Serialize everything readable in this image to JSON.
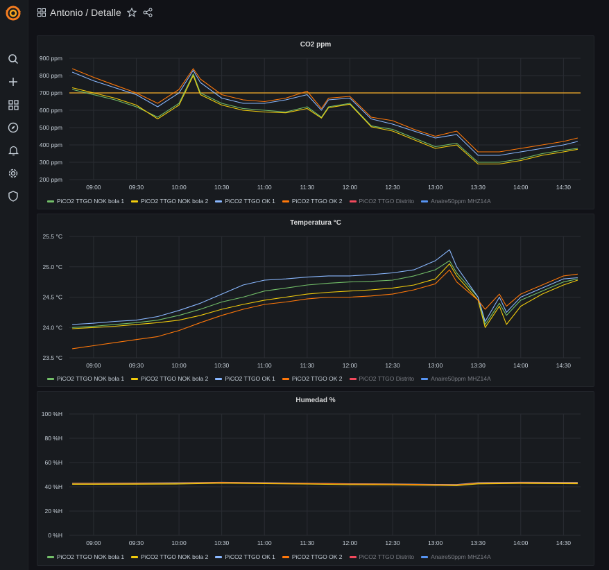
{
  "header": {
    "breadcrumb": "Antonio / Detalle"
  },
  "legend": [
    {
      "name": "PiCO2 TTGO NOK bola 1",
      "color": "#73bf69",
      "hidden": false
    },
    {
      "name": "PiCO2 TTGO NOK bola 2",
      "color": "#f2cc0c",
      "hidden": false
    },
    {
      "name": "PiCO2 TTGO OK 1",
      "color": "#8ab8ff",
      "hidden": false
    },
    {
      "name": "PiCO2 TTGO OK 2",
      "color": "#ff780a",
      "hidden": false
    },
    {
      "name": "PiCO2 TTGO Distrito",
      "color": "#f2495c",
      "hidden": true
    },
    {
      "name": "Anaire50ppm MHZ14A",
      "color": "#5794f2",
      "hidden": true
    }
  ],
  "chart_data": [
    {
      "type": "line",
      "title": "CO2 ppm",
      "x": [
        "08:45",
        "09:00",
        "09:15",
        "09:30",
        "09:45",
        "10:00",
        "10:10",
        "10:15",
        "10:30",
        "10:45",
        "11:00",
        "11:15",
        "11:30",
        "11:40",
        "11:45",
        "12:00",
        "12:15",
        "12:30",
        "12:45",
        "13:00",
        "13:15",
        "13:30",
        "13:45",
        "14:00",
        "14:15",
        "14:30",
        "14:40"
      ],
      "x_ticks": [
        "09:00",
        "09:30",
        "10:00",
        "10:30",
        "11:00",
        "11:30",
        "12:00",
        "12:30",
        "13:00",
        "13:30",
        "14:00",
        "14:30"
      ],
      "y_ticks": [
        "200 ppm",
        "300 ppm",
        "400 ppm",
        "500 ppm",
        "600 ppm",
        "700 ppm",
        "800 ppm",
        "900 ppm"
      ],
      "ylim": [
        200,
        900
      ],
      "threshold": 700,
      "threshold_color": "#d89a2a",
      "series": [
        {
          "name": "PiCO2 TTGO NOK bola 1",
          "values": [
            720,
            690,
            660,
            620,
            560,
            640,
            810,
            700,
            640,
            610,
            600,
            590,
            620,
            560,
            620,
            640,
            510,
            490,
            440,
            390,
            410,
            300,
            300,
            320,
            350,
            370,
            380
          ]
        },
        {
          "name": "PiCO2 TTGO NOK bola 2",
          "values": [
            730,
            700,
            670,
            630,
            550,
            630,
            800,
            690,
            630,
            600,
            590,
            585,
            610,
            555,
            615,
            635,
            505,
            480,
            430,
            380,
            400,
            290,
            290,
            310,
            340,
            360,
            375
          ]
        },
        {
          "name": "PiCO2 TTGO OK 1",
          "values": [
            820,
            770,
            730,
            690,
            620,
            700,
            830,
            760,
            670,
            640,
            640,
            660,
            690,
            600,
            660,
            670,
            550,
            520,
            480,
            440,
            460,
            340,
            340,
            360,
            380,
            400,
            420
          ]
        },
        {
          "name": "PiCO2 TTGO OK 2",
          "values": [
            840,
            790,
            745,
            700,
            640,
            720,
            840,
            780,
            690,
            660,
            650,
            670,
            710,
            610,
            670,
            680,
            560,
            540,
            490,
            450,
            480,
            360,
            360,
            380,
            400,
            420,
            440
          ]
        }
      ]
    },
    {
      "type": "line",
      "title": "Temperatura °C",
      "x": [
        "08:45",
        "09:00",
        "09:15",
        "09:30",
        "09:45",
        "10:00",
        "10:15",
        "10:30",
        "10:45",
        "11:00",
        "11:15",
        "11:30",
        "11:45",
        "12:00",
        "12:15",
        "12:30",
        "12:45",
        "13:00",
        "13:10",
        "13:15",
        "13:30",
        "13:35",
        "13:45",
        "13:50",
        "14:00",
        "14:15",
        "14:30",
        "14:40"
      ],
      "x_ticks": [
        "09:00",
        "09:30",
        "10:00",
        "10:30",
        "11:00",
        "11:30",
        "12:00",
        "12:30",
        "13:00",
        "13:30",
        "14:00",
        "14:30"
      ],
      "y_ticks": [
        "23.5 °C",
        "24.0 °C",
        "24.5 °C",
        "25.0 °C",
        "25.5 °C"
      ],
      "ylim": [
        23.5,
        25.5
      ],
      "series": [
        {
          "name": "PiCO2 TTGO NOK bola 1",
          "values": [
            24.0,
            24.02,
            24.05,
            24.08,
            24.12,
            24.2,
            24.3,
            24.42,
            24.5,
            24.6,
            24.65,
            24.7,
            24.73,
            24.75,
            24.76,
            24.78,
            24.85,
            24.95,
            25.1,
            24.9,
            24.5,
            24.05,
            24.4,
            24.2,
            24.45,
            24.6,
            24.75,
            24.8
          ]
        },
        {
          "name": "PiCO2 TTGO NOK bola 2",
          "values": [
            23.98,
            24.0,
            24.02,
            24.05,
            24.08,
            24.12,
            24.2,
            24.3,
            24.38,
            24.45,
            24.5,
            24.55,
            24.58,
            24.6,
            24.62,
            24.65,
            24.7,
            24.8,
            25.05,
            24.85,
            24.45,
            24.0,
            24.35,
            24.05,
            24.35,
            24.55,
            24.7,
            24.78
          ]
        },
        {
          "name": "PiCO2 TTGO OK 1",
          "values": [
            24.05,
            24.07,
            24.1,
            24.12,
            24.18,
            24.28,
            24.4,
            24.55,
            24.7,
            24.78,
            24.8,
            24.83,
            24.85,
            24.85,
            24.87,
            24.9,
            24.95,
            25.1,
            25.28,
            25.0,
            24.5,
            24.1,
            24.5,
            24.25,
            24.5,
            24.65,
            24.8,
            24.82
          ]
        },
        {
          "name": "PiCO2 TTGO OK 2",
          "values": [
            23.65,
            23.7,
            23.75,
            23.8,
            23.85,
            23.95,
            24.08,
            24.2,
            24.3,
            24.38,
            24.42,
            24.47,
            24.5,
            24.5,
            24.52,
            24.55,
            24.62,
            24.72,
            24.95,
            24.75,
            24.45,
            24.3,
            24.55,
            24.35,
            24.55,
            24.7,
            24.85,
            24.88
          ]
        }
      ]
    },
    {
      "type": "line",
      "title": "Humedad %",
      "x": [
        "08:45",
        "09:00",
        "09:30",
        "10:00",
        "10:30",
        "11:00",
        "11:30",
        "12:00",
        "12:30",
        "13:00",
        "13:15",
        "13:30",
        "14:00",
        "14:30",
        "14:40"
      ],
      "x_ticks": [
        "09:00",
        "09:30",
        "10:00",
        "10:30",
        "11:00",
        "11:30",
        "12:00",
        "12:30",
        "13:00",
        "13:30",
        "14:00",
        "14:30"
      ],
      "y_ticks": [
        "0 %H",
        "20 %H",
        "40 %H",
        "60 %H",
        "80 %H",
        "100 %H"
      ],
      "ylim": [
        0,
        100
      ],
      "series": [
        {
          "name": "PiCO2 TTGO NOK bola 1",
          "values": [
            42.5,
            42.5,
            42.6,
            42.8,
            43.4,
            43.0,
            42.6,
            42.2,
            42.0,
            41.6,
            41.5,
            42.8,
            43.2,
            43.0,
            43.0
          ]
        },
        {
          "name": "PiCO2 TTGO NOK bola 2",
          "values": [
            42.0,
            42.0,
            42.1,
            42.3,
            43.0,
            42.6,
            42.2,
            41.8,
            41.6,
            41.2,
            41.0,
            42.4,
            42.8,
            42.6,
            42.5
          ]
        },
        {
          "name": "PiCO2 TTGO OK 1",
          "values": [
            43.0,
            43.0,
            43.1,
            43.3,
            43.8,
            43.4,
            43.0,
            42.6,
            42.4,
            42.0,
            41.9,
            43.4,
            43.8,
            43.6,
            43.6
          ]
        },
        {
          "name": "PiCO2 TTGO OK 2",
          "values": [
            42.8,
            42.8,
            42.9,
            43.1,
            43.6,
            43.2,
            42.8,
            42.4,
            42.2,
            41.8,
            41.7,
            43.1,
            43.5,
            43.3,
            43.3
          ]
        }
      ]
    }
  ]
}
